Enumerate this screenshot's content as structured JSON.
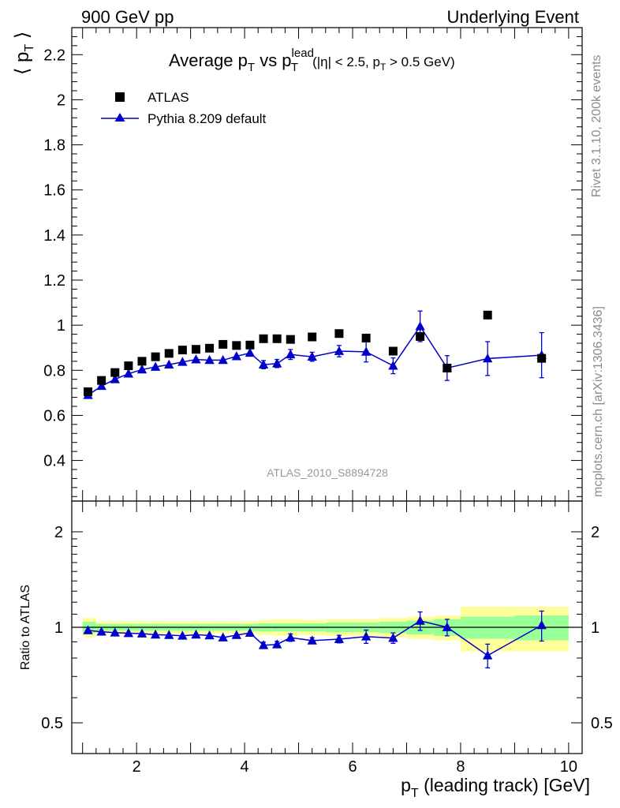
{
  "header": {
    "energy_label": "900 GeV pp",
    "analysis_group": "Underlying Event"
  },
  "side_labels": {
    "rivet": "Rivet 3.1.10,  200k events",
    "mcplots": "mcplots.cern.ch [arXiv:1306.3436]"
  },
  "watermark": "ATLAS_2010_S8894728",
  "colors": {
    "data": "#000000",
    "mc": "#0000cc",
    "band_inner": "#99ff99",
    "band_outer": "#ffff99",
    "watermark": "#999999",
    "side_text": "#8c8c8c"
  },
  "chart_data": [
    {
      "type": "scatter",
      "panel": "main",
      "title": "Average p_T vs p_T^lead (|η| < 2.5, p_T > 0.5 GeV)",
      "title_parts": {
        "main": "Average p",
        "sub1": "T",
        "vs": " vs p",
        "sup": "lead",
        "sub2": "T",
        "cuts": "(|η| < 2.5, p",
        "cuts_sub": "T",
        "cuts_end": " > 0.5 GeV)"
      },
      "ylabel": "⟨ p_T ⟩",
      "xlim": [
        0.8,
        10.25
      ],
      "ylim": [
        0.22,
        2.32
      ],
      "yticks": [
        0.4,
        0.6,
        0.8,
        1.0,
        1.2,
        1.4,
        1.6,
        1.8,
        2.0,
        2.2
      ],
      "ytick_labels": [
        "0.4",
        "0.6",
        "0.8",
        "1",
        "1.2",
        "1.4",
        "1.6",
        "1.8",
        "2",
        "2.2"
      ],
      "legend_position": "top-left",
      "series": [
        {
          "name": "ATLAS",
          "marker": "square",
          "x": [
            1.1,
            1.35,
            1.6,
            1.85,
            2.1,
            2.35,
            2.6,
            2.85,
            3.1,
            3.35,
            3.6,
            3.85,
            4.1,
            4.35,
            4.6,
            4.85,
            5.25,
            5.75,
            6.25,
            6.75,
            7.25,
            7.75,
            8.5,
            9.5
          ],
          "y": [
            0.705,
            0.755,
            0.79,
            0.82,
            0.84,
            0.86,
            0.875,
            0.89,
            0.893,
            0.898,
            0.915,
            0.91,
            0.912,
            0.94,
            0.94,
            0.937,
            0.948,
            0.963,
            0.943,
            0.885,
            0.95,
            0.81,
            1.045,
            0.853
          ]
        },
        {
          "name": "Pythia 8.209 default",
          "marker": "triangle",
          "x": [
            1.1,
            1.35,
            1.6,
            1.85,
            2.1,
            2.35,
            2.6,
            2.85,
            3.1,
            3.35,
            3.6,
            3.85,
            4.1,
            4.35,
            4.6,
            4.85,
            5.25,
            5.75,
            6.25,
            6.75,
            7.25,
            7.75,
            8.5,
            9.5
          ],
          "y": [
            0.69,
            0.73,
            0.76,
            0.785,
            0.803,
            0.815,
            0.825,
            0.837,
            0.848,
            0.845,
            0.845,
            0.862,
            0.877,
            0.825,
            0.83,
            0.87,
            0.86,
            0.885,
            0.882,
            0.82,
            0.995,
            0.81,
            0.852,
            0.867
          ],
          "yerr": [
            0.008,
            0.008,
            0.008,
            0.008,
            0.008,
            0.008,
            0.008,
            0.008,
            0.008,
            0.008,
            0.008,
            0.008,
            0.012,
            0.018,
            0.018,
            0.022,
            0.02,
            0.025,
            0.045,
            0.035,
            0.068,
            0.055,
            0.075,
            0.1
          ]
        }
      ]
    },
    {
      "type": "scatter",
      "panel": "ratio",
      "ylabel": "Ratio to ATLAS",
      "xlabel": "p_T (leading track) [GeV]",
      "xlim": [
        0.8,
        10.25
      ],
      "ylim": [
        0.4,
        2.5
      ],
      "log_y": true,
      "yticks": [
        0.5,
        1,
        2
      ],
      "ytick_labels": [
        "0.5",
        "1",
        "2"
      ],
      "xticks": [
        2,
        4,
        6,
        8,
        10
      ],
      "xtick_labels": [
        "2",
        "4",
        "6",
        "8",
        "10"
      ],
      "bin_edges": [
        1.0,
        1.25,
        1.5,
        1.75,
        2.0,
        2.25,
        2.5,
        2.75,
        3.0,
        3.25,
        3.5,
        3.75,
        4.0,
        4.25,
        4.5,
        4.75,
        5.0,
        5.5,
        6.0,
        6.5,
        7.0,
        7.5,
        8.0,
        9.0,
        10.0
      ],
      "band_inner": [
        0.04,
        0.025,
        0.025,
        0.025,
        0.025,
        0.025,
        0.025,
        0.025,
        0.025,
        0.025,
        0.025,
        0.025,
        0.025,
        0.03,
        0.03,
        0.03,
        0.03,
        0.035,
        0.035,
        0.04,
        0.05,
        0.06,
        0.08,
        0.09
      ],
      "band_outer": [
        0.07,
        0.045,
        0.045,
        0.045,
        0.045,
        0.045,
        0.045,
        0.045,
        0.045,
        0.045,
        0.045,
        0.045,
        0.045,
        0.055,
        0.06,
        0.06,
        0.055,
        0.06,
        0.06,
        0.07,
        0.08,
        0.09,
        0.16,
        0.16
      ],
      "series": [
        {
          "name": "Pythia 8.209 default",
          "x": [
            1.1,
            1.35,
            1.6,
            1.85,
            2.1,
            2.35,
            2.6,
            2.85,
            3.1,
            3.35,
            3.6,
            3.85,
            4.1,
            4.35,
            4.6,
            4.85,
            5.25,
            5.75,
            6.25,
            6.75,
            7.25,
            7.75,
            8.5,
            9.5
          ],
          "y": [
            0.978,
            0.968,
            0.962,
            0.958,
            0.955,
            0.948,
            0.945,
            0.94,
            0.948,
            0.942,
            0.928,
            0.945,
            0.96,
            0.878,
            0.883,
            0.928,
            0.908,
            0.918,
            0.935,
            0.925,
            1.048,
            1.0,
            0.815,
            1.015
          ],
          "yerr": [
            0.01,
            0.01,
            0.01,
            0.01,
            0.01,
            0.01,
            0.01,
            0.01,
            0.01,
            0.01,
            0.01,
            0.01,
            0.012,
            0.02,
            0.02,
            0.025,
            0.02,
            0.025,
            0.045,
            0.035,
            0.07,
            0.06,
            0.07,
            0.11
          ]
        }
      ]
    }
  ]
}
